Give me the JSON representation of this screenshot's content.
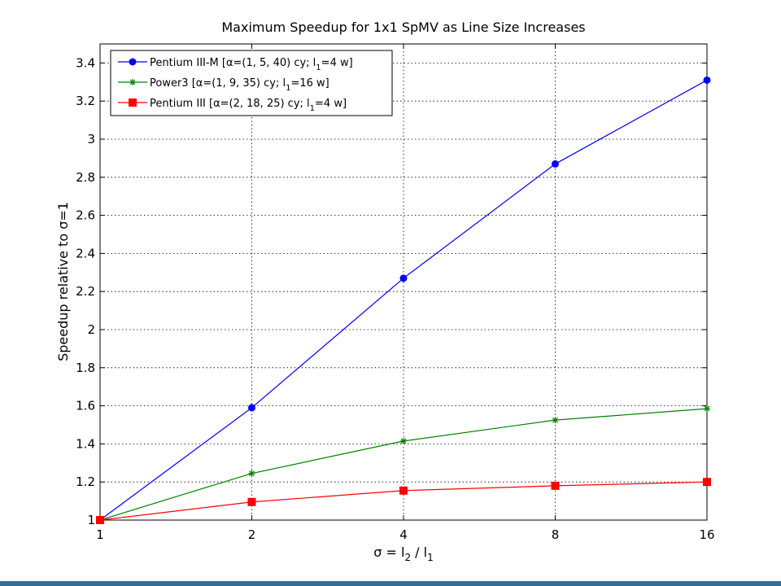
{
  "colors": {
    "axis": "#000000",
    "grid": "#000000",
    "frame_bar": "#2f6f9a"
  },
  "chart_data": {
    "type": "line",
    "title": "Maximum Speedup for 1x1 SpMV as Line Size Increases",
    "xlabel": {
      "base": "σ = l",
      "sub1": "2",
      "mid": " / l",
      "sub2": "1"
    },
    "ylabel": "Speedup relative to σ=1",
    "x_scale": "log2",
    "x_ticks": [
      1,
      2,
      4,
      8,
      16
    ],
    "x_tick_labels": [
      "1",
      "2",
      "4",
      "8",
      "16"
    ],
    "xlim": [
      1,
      16
    ],
    "ylim": [
      1,
      3.5
    ],
    "y_ticks": [
      1,
      1.2,
      1.4,
      1.6,
      1.8,
      2,
      2.2,
      2.4,
      2.6,
      2.8,
      3,
      3.2,
      3.4
    ],
    "y_tick_labels": [
      "1",
      "1.2",
      "1.4",
      "1.6",
      "1.8",
      "2",
      "2.2",
      "2.4",
      "2.6",
      "2.8",
      "3",
      "3.2",
      "3.4"
    ],
    "grid": true,
    "legend_position": "top-left",
    "x": [
      1,
      2,
      4,
      8,
      16
    ],
    "series": [
      {
        "name": "Pentium III-M",
        "label_parts": [
          "Pentium III-M [α=(1, 5, 40) cy; l",
          "1",
          "=4 w]"
        ],
        "color": "#0000ff",
        "marker": "circle",
        "values": [
          1.0,
          1.59,
          2.27,
          2.87,
          3.31
        ]
      },
      {
        "name": "Power3",
        "label_parts": [
          "Power3 [α=(1, 9, 35) cy; l",
          "1",
          "=16 w]"
        ],
        "color": "#008000",
        "marker": "star",
        "values": [
          1.0,
          1.245,
          1.415,
          1.525,
          1.585
        ]
      },
      {
        "name": "Pentium III",
        "label_parts": [
          "Pentium III [α=(2, 18, 25) cy; l",
          "1",
          "=4 w]"
        ],
        "color": "#ff0000",
        "marker": "square",
        "values": [
          1.0,
          1.095,
          1.155,
          1.18,
          1.2
        ]
      }
    ]
  }
}
